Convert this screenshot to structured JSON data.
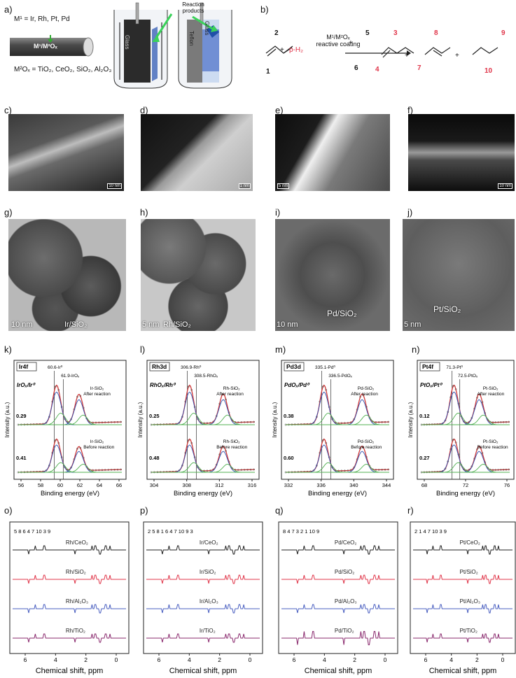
{
  "panel_labels": [
    "a)",
    "b)",
    "c)",
    "d)",
    "e)",
    "f)",
    "g)",
    "h)",
    "i)",
    "j)",
    "k)",
    "l)",
    "m)",
    "n)",
    "o)",
    "p)",
    "q)",
    "r)"
  ],
  "panel_a": {
    "m1_line": "M¹ = Ir, Rh, Pt, Pd",
    "m2_line": "M²Oₓ = TiO₂, CeO₂, SiO₂, Al₂O₃",
    "rod_label": "M¹/M²Oₓ",
    "reaction_products": "Reaction products",
    "glass": "Glass",
    "teflon": "Teflon",
    "glass2": "Glass"
  },
  "panel_b": {
    "arrow_top": "M¹/M²Oₓ",
    "arrow_bottom": "reactive coating",
    "reagent": "p-H₂",
    "plus": "+",
    "numbers_black": [
      "1",
      "2",
      "5",
      "6"
    ],
    "numbers_red": [
      "3",
      "4",
      "7",
      "8",
      "9",
      "10"
    ]
  },
  "tem_labels": [
    "Ir/SiO₂",
    "Rh/SiO₂",
    "Pd/SiO₂",
    "Pt/SiO₂"
  ],
  "tem_scale": [
    "10 nm",
    "5 nm",
    "10 nm",
    "5 nm"
  ],
  "sem_scale": [
    "10 nm",
    "1 nm",
    "5 nm",
    "10 nm"
  ],
  "xps": [
    {
      "title": "Ir4f",
      "state": "IrOₓ/Ir⁰",
      "peaks": [
        "60.6-Ir⁰",
        "61.9-IrOₓ"
      ],
      "top_label": "Ir-SiO₂\nAfter reaction",
      "bottom_label": "Ir-SiO₂\nBefore reaction",
      "ratio_top": "0.29",
      "ratio_bottom": "0.41",
      "xticks": [
        "56",
        "60",
        "64"
      ],
      "xticks_full": [
        "56",
        "58",
        "60",
        "62",
        "64",
        "66"
      ]
    },
    {
      "title": "Rh3d",
      "state": "RhOₓ/Rh⁰",
      "peaks": [
        "306.9-Rh⁰",
        "308.5-RhOₓ"
      ],
      "top_label": "Rh-SiO₂\nAfter reaction",
      "bottom_label": "Rh-SiO₂\nBefore reaction",
      "ratio_top": "0.25",
      "ratio_bottom": "0.48",
      "xticks_full": [
        "304",
        "308",
        "312",
        "316"
      ]
    },
    {
      "title": "Pd3d",
      "state": "PdOₓ/Pd⁰",
      "peaks": [
        "335.1-Pd⁰",
        "336.5-PdOₓ"
      ],
      "top_label": "Pd-SiO₂\nAfter reaction",
      "bottom_label": "Pd-SiO₂\nBefore reaction",
      "ratio_top": "0.38",
      "ratio_bottom": "0.60",
      "xticks_full": [
        "332",
        "336",
        "340",
        "344"
      ]
    },
    {
      "title": "Pt4f",
      "state": "PtOₓ/Pt⁰",
      "peaks": [
        "71.3-Pt⁰",
        "72.5-PtOₓ"
      ],
      "top_label": "Pt-SiO₂\nAfter reaction",
      "bottom_label": "Pt-SiO₂\nBefore reaction",
      "ratio_top": "0.12",
      "ratio_bottom": "0.27",
      "xticks_full": [
        "68",
        "72",
        "76"
      ]
    }
  ],
  "xps_ylabel": "Intensity (a.u.)",
  "xps_xlabel": "Binding energy (eV)",
  "xps_xlabel_short": "Binding energy (eV)",
  "nmr": [
    {
      "traces": [
        "Rh/CeO₂",
        "Rh/SiO₂",
        "Rh/Al₂O₃",
        "Rh/TiO₂"
      ],
      "annot": "5 8 6 4 7 10 3 9"
    },
    {
      "traces": [
        "Ir/CeO₂",
        "Ir/SiO₂",
        "Ir/Al₂O₃",
        "Ir/TiO₂"
      ],
      "annot": "2 5 8 1 6 4 7 10 9 3"
    },
    {
      "traces": [
        "Pd/CeO₂",
        "Pd/SiO₂",
        "Pd/Al₂O₃",
        "Pd/TiO₂"
      ],
      "annot": "8 4 7 3 2 1 10 9"
    },
    {
      "traces": [
        "Pt/CeO₂",
        "Pt/SiO₂",
        "Pt/Al₂O₃",
        "Pt/TiO₂"
      ],
      "annot": "2 1 4 7 10 3 9"
    }
  ],
  "nmr_xticks": [
    "6",
    "4",
    "2",
    "0"
  ],
  "nmr_xlabel": "Chemical shift, ppm",
  "colors": {
    "black": "#222222",
    "red": "#e0364a",
    "blue": "#4a5fc0",
    "purple": "#8a2a6e",
    "green": "#5ac85a",
    "xps_fit": "#d03838",
    "xps_comp_blue": "#3050b0",
    "xps_comp_green": "#50b050"
  }
}
